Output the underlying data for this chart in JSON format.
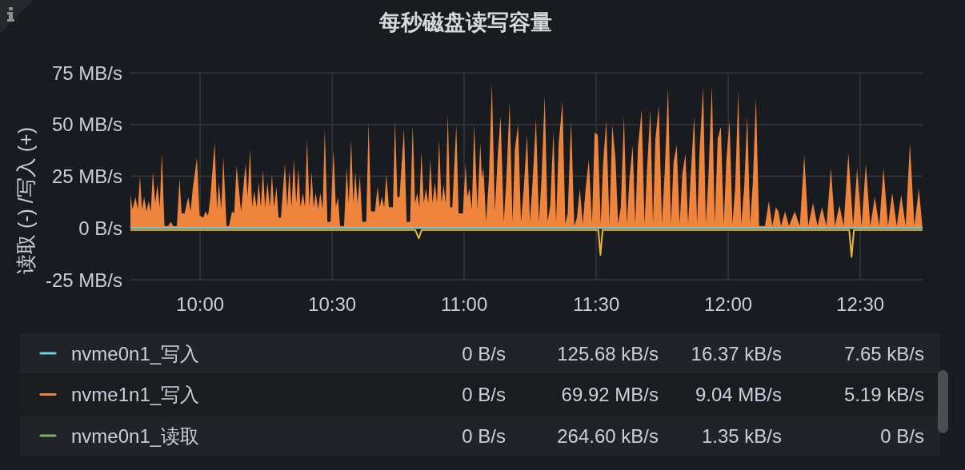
{
  "chart_data": {
    "type": "line",
    "title": "每秒磁盘读写容量",
    "ylabel": "读取 (-) /写入 (+)",
    "xlim": [
      9.736,
      12.736
    ],
    "xticks": [
      {
        "value": 10,
        "label": "10:00"
      },
      {
        "value": 10.5,
        "label": "10:30"
      },
      {
        "value": 11,
        "label": "11:00"
      },
      {
        "value": 11.5,
        "label": "11:30"
      },
      {
        "value": 12,
        "label": "12:00"
      },
      {
        "value": 12.5,
        "label": "12:30"
      }
    ],
    "ylim": [
      -25,
      75
    ],
    "yticks": [
      {
        "value": -25,
        "label": "-25 MB/s"
      },
      {
        "value": 0,
        "label": "0 B/s"
      },
      {
        "value": 25,
        "label": "25 MB/s"
      },
      {
        "value": 50,
        "label": "50 MB/s"
      },
      {
        "value": 75,
        "label": "75 MB/s"
      }
    ],
    "grid": true,
    "legend": "bottom",
    "series": [
      {
        "name": "nvme0n1_写入",
        "color": "#6ed0e0",
        "x": [
          9.736,
          12.736
        ],
        "values": [
          0,
          0
        ]
      },
      {
        "name": "nvme1n1_写入",
        "type": "area",
        "color": "#ef843c",
        "x": [
          9.736,
          9.744,
          9.755,
          9.764,
          9.772,
          9.78,
          9.788,
          9.797,
          9.805,
          9.813,
          9.821,
          9.83,
          9.838,
          9.847,
          9.855,
          9.865,
          9.879,
          9.889,
          9.898,
          9.912,
          9.922,
          9.93,
          9.941,
          9.955,
          9.964,
          9.972,
          9.988,
          9.998,
          10.012,
          10.02,
          10.03,
          10.038,
          10.055,
          10.064,
          10.071,
          10.08,
          10.088,
          10.1,
          10.109,
          10.121,
          10.129,
          10.138,
          10.155,
          10.172,
          10.18,
          10.189,
          10.197,
          10.205,
          10.214,
          10.222,
          10.23,
          10.238,
          10.246,
          10.255,
          10.264,
          10.272,
          10.28,
          10.289,
          10.297,
          10.306,
          10.321,
          10.33,
          10.338,
          10.346,
          10.355,
          10.364,
          10.372,
          10.38,
          10.389,
          10.397,
          10.405,
          10.414,
          10.422,
          10.43,
          10.438,
          10.447,
          10.455,
          10.464,
          10.472,
          10.482,
          10.494,
          10.505,
          10.514,
          10.522,
          10.53,
          10.545,
          10.555,
          10.563,
          10.572,
          10.58,
          10.588,
          10.596,
          10.605,
          10.614,
          10.629,
          10.638,
          10.647,
          10.662,
          10.672,
          10.68,
          10.688,
          10.697,
          10.705,
          10.715,
          10.73,
          10.738,
          10.747,
          10.755,
          10.772,
          10.782,
          10.795,
          10.805,
          10.814,
          10.822,
          10.83,
          10.838,
          10.847,
          10.855,
          10.864,
          10.872,
          10.88,
          10.889,
          10.897,
          10.905,
          10.914,
          10.922,
          10.93,
          10.938,
          10.947,
          10.955,
          10.97,
          10.979,
          10.995,
          11.005,
          11.012,
          11.02,
          11.029,
          11.038,
          11.05,
          11.061,
          11.067,
          11.073,
          11.083,
          11.094,
          11.105,
          11.116,
          11.128,
          11.138,
          11.15,
          11.16,
          11.172,
          11.183,
          11.192,
          11.204,
          11.215,
          11.225,
          11.238,
          11.249,
          11.258,
          11.272,
          11.283,
          11.293,
          11.305,
          11.316,
          11.326,
          11.338,
          11.348,
          11.358,
          11.372,
          11.383,
          11.392,
          11.405,
          11.417,
          11.427,
          11.438,
          11.449,
          11.46,
          11.472,
          11.484,
          11.494,
          11.506,
          11.517,
          11.526,
          11.538,
          11.55,
          11.561,
          11.573,
          11.583,
          11.593,
          11.605,
          11.616,
          11.626,
          11.638,
          11.648,
          11.658,
          11.672,
          11.683,
          11.692,
          11.705,
          11.715,
          11.724,
          11.737,
          11.749,
          11.76,
          11.772,
          11.783,
          11.793,
          11.805,
          11.816,
          11.826,
          11.838,
          11.848,
          11.858,
          11.871,
          11.882,
          11.892,
          11.905,
          11.915,
          11.925,
          11.938,
          11.949,
          11.96,
          11.972,
          11.983,
          11.993,
          12.005,
          12.016,
          12.026,
          12.038,
          12.049,
          12.06,
          12.072,
          12.083,
          12.093,
          12.105,
          12.117,
          12.139,
          12.154,
          12.167,
          12.18,
          12.19,
          12.2,
          12.215,
          12.23,
          12.252,
          12.271,
          12.288,
          12.303,
          12.321,
          12.338,
          12.355,
          12.372,
          12.389,
          12.404,
          12.421,
          12.437,
          12.455,
          12.473,
          12.488,
          12.505,
          12.521,
          12.538,
          12.555,
          12.572,
          12.588,
          12.605,
          12.621,
          12.638,
          12.655,
          12.672,
          12.688,
          12.705,
          12.722,
          12.735
        ],
        "values": [
          16,
          9,
          15,
          9,
          25,
          9,
          15,
          8,
          13,
          8,
          27,
          12,
          21,
          10,
          36,
          1,
          1,
          3,
          1,
          1,
          24,
          7,
          7,
          15,
          8,
          19,
          34,
          6,
          5,
          8,
          6,
          14,
          41,
          9,
          22,
          9,
          34,
          1,
          1,
          8,
          7,
          30,
          8,
          31,
          15,
          38,
          10,
          18,
          10,
          22,
          10,
          28,
          10,
          22,
          10,
          26,
          10,
          20,
          5,
          5,
          31,
          10,
          28,
          10,
          33,
          12,
          29,
          10,
          17,
          10,
          43,
          10,
          27,
          10,
          17,
          9,
          17,
          9,
          48,
          3,
          3,
          38,
          10,
          15,
          1,
          1,
          29,
          12,
          43,
          12,
          27,
          12,
          25,
          3,
          3,
          51,
          8,
          8,
          20,
          10,
          15,
          10,
          26,
          10,
          10,
          52,
          15,
          15,
          48,
          3,
          3,
          50,
          12,
          17,
          10,
          37,
          12,
          19,
          12,
          33,
          12,
          22,
          12,
          43,
          12,
          21,
          12,
          55,
          10,
          10,
          50,
          7,
          7,
          31,
          15,
          19,
          9,
          50,
          9,
          41,
          24,
          29,
          3,
          25,
          70,
          8,
          37,
          54,
          3,
          24,
          61,
          3,
          38,
          50,
          3,
          18,
          45,
          3,
          20,
          53,
          3,
          24,
          64,
          3,
          11,
          47,
          3,
          41,
          61,
          2,
          7,
          52,
          1,
          5,
          19,
          2,
          19,
          33,
          2,
          46,
          45,
          2,
          31,
          52,
          2,
          50,
          33,
          2,
          10,
          54,
          2,
          24,
          40,
          2,
          39,
          57,
          2,
          27,
          57,
          2,
          43,
          59,
          2,
          29,
          68,
          2,
          32,
          40,
          2,
          26,
          36,
          2,
          26,
          54,
          2,
          39,
          68,
          2,
          25,
          69,
          2,
          43,
          49,
          2,
          33,
          52,
          2,
          19,
          66,
          2,
          19,
          54,
          2,
          22,
          63,
          1,
          1,
          13,
          1,
          10,
          8,
          1,
          8,
          1,
          8,
          1,
          35,
          1,
          12,
          1,
          10,
          1,
          29,
          1,
          11,
          1,
          36,
          1,
          29,
          1,
          31,
          1,
          15,
          1,
          29,
          1,
          17,
          1,
          16,
          1,
          41,
          1,
          19,
          1
        ]
      },
      {
        "name": "nvme0n1_读取",
        "color": "#7eb26d",
        "values": [
          null
        ]
      },
      {
        "color": "#eab839",
        "x": [
          9.736,
          10.815,
          10.828,
          10.839,
          11.508,
          11.516,
          11.524,
          12.458,
          12.467,
          12.476,
          12.736
        ],
        "values": [
          -1,
          -1,
          -5,
          -1,
          -1,
          -13,
          -1,
          -1,
          -14,
          -1,
          -1
        ]
      }
    ],
    "annotations": [
      "0 B/s",
      "125.68 kB/s",
      "16.37 kB/s",
      "7.65 kB/s",
      "0 B/s",
      "69.92 MB/s",
      "9.04 MB/s",
      "5.19 kB/s",
      "0 B/s",
      "264.60 kB/s",
      "1.35 kB/s",
      "0 B/s"
    ]
  }
}
